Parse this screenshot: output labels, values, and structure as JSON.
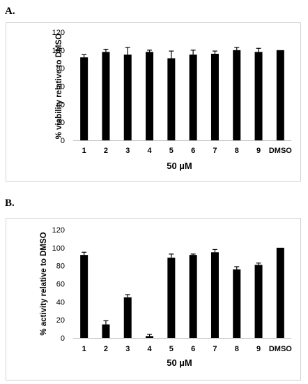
{
  "panels": [
    {
      "label": "A."
    },
    {
      "label": "B."
    }
  ],
  "chart_data": [
    {
      "type": "bar",
      "categories": [
        "1",
        "2",
        "3",
        "4",
        "5",
        "6",
        "7",
        "8",
        "9",
        "DMSO"
      ],
      "values": [
        92,
        98,
        95,
        98,
        91,
        95,
        96,
        100,
        98,
        100
      ],
      "errors": [
        3,
        3,
        8,
        2,
        8,
        5,
        3,
        3,
        4,
        0
      ],
      "title": "",
      "xlabel": "50 µM",
      "ylabel": "% viability relative to DMSO",
      "ylim": [
        0,
        120
      ],
      "yticks": [
        0,
        20,
        40,
        60,
        80,
        100,
        120
      ],
      "grid": false,
      "bar_color": "#000000"
    },
    {
      "type": "bar",
      "categories": [
        "1",
        "2",
        "3",
        "4",
        "5",
        "6",
        "7",
        "8",
        "9",
        "DMSO"
      ],
      "values": [
        92,
        15,
        45,
        2,
        89,
        92,
        95,
        76,
        81,
        100
      ],
      "errors": [
        3,
        4,
        3,
        2,
        4,
        1,
        3,
        3,
        2,
        0
      ],
      "title": "",
      "xlabel": "50 µM",
      "ylabel": "% activity relative to DMSO",
      "ylim": [
        0,
        120
      ],
      "yticks": [
        0,
        20,
        40,
        60,
        80,
        100,
        120
      ],
      "grid": false,
      "bar_color": "#000000"
    }
  ]
}
